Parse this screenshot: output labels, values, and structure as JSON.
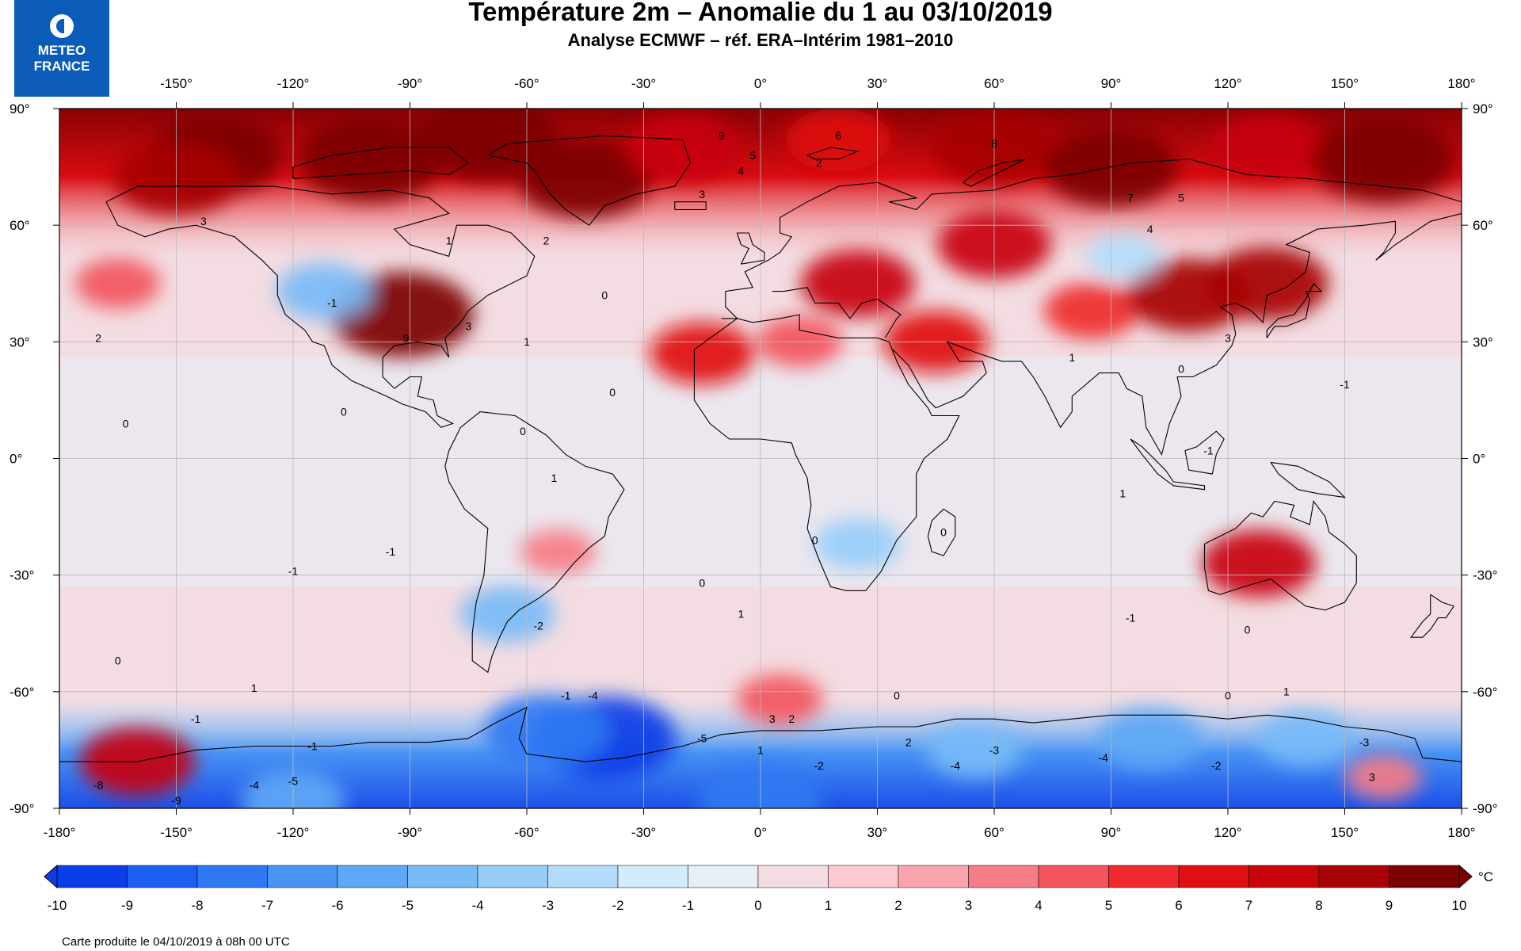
{
  "header": {
    "title": "Température 2m – Anomalie du 1 au 03/10/2019",
    "subtitle": "Analyse ECMWF – réf. ERA–Intérim 1981–2010"
  },
  "logo": {
    "line1": "METEO",
    "line2": "FRANCE",
    "icon": "meteo-france-logo-icon"
  },
  "map": {
    "projection": "equirectangular",
    "lon_range": [
      -180,
      180
    ],
    "lat_range": [
      -90,
      90
    ],
    "lon_ticks": [
      "-150°",
      "-120°",
      "-90°",
      "-60°",
      "-30°",
      "0°",
      "30°",
      "60°",
      "90°",
      "120°",
      "150°",
      "180°"
    ],
    "lon_ticks_bottom": [
      "-180°",
      "-150°",
      "-120°",
      "-90°",
      "-60°",
      "-30°",
      "0°",
      "30°",
      "60°",
      "90°",
      "120°",
      "150°",
      "180°"
    ],
    "lat_ticks": [
      "90°",
      "60°",
      "30°",
      "0°",
      "-30°",
      "-60°",
      "-90°"
    ],
    "grid": true,
    "background_color": "#f3dde2",
    "anomalies": [
      {
        "lon": -140,
        "lat": 78,
        "value": 9
      },
      {
        "lon": -150,
        "lat": 72,
        "value": 8
      },
      {
        "lon": -100,
        "lat": 77,
        "value": 10
      },
      {
        "lon": -70,
        "lat": 82,
        "value": 10
      },
      {
        "lon": -45,
        "lat": 72,
        "value": 9
      },
      {
        "lon": -20,
        "lat": 80,
        "value": 7
      },
      {
        "lon": 20,
        "lat": 82,
        "value": 6
      },
      {
        "lon": 60,
        "lat": 80,
        "value": 8
      },
      {
        "lon": 90,
        "lat": 75,
        "value": 9
      },
      {
        "lon": 130,
        "lat": 80,
        "value": 7
      },
      {
        "lon": 160,
        "lat": 77,
        "value": 10
      },
      {
        "lon": -165,
        "lat": 45,
        "value": 4
      },
      {
        "lon": -92,
        "lat": 37,
        "value": 10
      },
      {
        "lon": -112,
        "lat": 43,
        "value": -5
      },
      {
        "lon": -15,
        "lat": 27,
        "value": 6
      },
      {
        "lon": 10,
        "lat": 30,
        "value": 4
      },
      {
        "lon": 25,
        "lat": 45,
        "value": 7
      },
      {
        "lon": 45,
        "lat": 30,
        "value": 6
      },
      {
        "lon": 60,
        "lat": 55,
        "value": 7
      },
      {
        "lon": 85,
        "lat": 38,
        "value": 5
      },
      {
        "lon": 110,
        "lat": 42,
        "value": 8
      },
      {
        "lon": 130,
        "lat": 45,
        "value": 8
      },
      {
        "lon": 93,
        "lat": 52,
        "value": -3
      },
      {
        "lon": -52,
        "lat": -24,
        "value": 3
      },
      {
        "lon": -65,
        "lat": -40,
        "value": -5
      },
      {
        "lon": 25,
        "lat": -22,
        "value": -4
      },
      {
        "lon": 128,
        "lat": -27,
        "value": 7
      },
      {
        "lon": 5,
        "lat": -62,
        "value": 4
      },
      {
        "lon": -40,
        "lat": -72,
        "value": -10
      },
      {
        "lon": -55,
        "lat": -70,
        "value": -8
      },
      {
        "lon": 100,
        "lat": -72,
        "value": -6
      },
      {
        "lon": 140,
        "lat": -72,
        "value": -5
      },
      {
        "lon": 55,
        "lat": -75,
        "value": -5
      },
      {
        "lon": -160,
        "lat": -78,
        "value": 7
      },
      {
        "lon": 160,
        "lat": -82,
        "value": 3
      },
      {
        "lon": 0,
        "lat": -88,
        "value": -8
      },
      {
        "lon": -120,
        "lat": -88,
        "value": -6
      }
    ],
    "contour_labels": [
      {
        "lon": -170,
        "lat": 30,
        "text": "2"
      },
      {
        "lon": -143,
        "lat": 60,
        "text": "3"
      },
      {
        "lon": -163,
        "lat": 8,
        "text": "0"
      },
      {
        "lon": -107,
        "lat": 11,
        "text": "0"
      },
      {
        "lon": -110,
        "lat": 39,
        "text": "-1"
      },
      {
        "lon": -91,
        "lat": 30,
        "text": "9"
      },
      {
        "lon": -75,
        "lat": 33,
        "text": "3"
      },
      {
        "lon": -60,
        "lat": 29,
        "text": "1"
      },
      {
        "lon": -40,
        "lat": 41,
        "text": "0"
      },
      {
        "lon": -38,
        "lat": 16,
        "text": "0"
      },
      {
        "lon": -61,
        "lat": 6,
        "text": "0"
      },
      {
        "lon": -53,
        "lat": -6,
        "text": "1"
      },
      {
        "lon": -95,
        "lat": -25,
        "text": "-1"
      },
      {
        "lon": -120,
        "lat": -30,
        "text": "-1"
      },
      {
        "lon": -57,
        "lat": -44,
        "text": "-2"
      },
      {
        "lon": -15,
        "lat": -33,
        "text": "0"
      },
      {
        "lon": -5,
        "lat": -41,
        "text": "1"
      },
      {
        "lon": -145,
        "lat": -68,
        "text": "-1"
      },
      {
        "lon": -115,
        "lat": -75,
        "text": "-1"
      },
      {
        "lon": -130,
        "lat": -60,
        "text": "1"
      },
      {
        "lon": -165,
        "lat": -53,
        "text": "0"
      },
      {
        "lon": -170,
        "lat": -85,
        "text": "-8"
      },
      {
        "lon": -150,
        "lat": -89,
        "text": "-9"
      },
      {
        "lon": -130,
        "lat": -85,
        "text": "-4"
      },
      {
        "lon": -120,
        "lat": -84,
        "text": "-5"
      },
      {
        "lon": -50,
        "lat": -62,
        "text": "-1"
      },
      {
        "lon": -43,
        "lat": -62,
        "text": "-4"
      },
      {
        "lon": -15,
        "lat": -73,
        "text": "-5"
      },
      {
        "lon": 0,
        "lat": -76,
        "text": "1"
      },
      {
        "lon": 3,
        "lat": -68,
        "text": "3"
      },
      {
        "lon": 8,
        "lat": -68,
        "text": "2"
      },
      {
        "lon": 15,
        "lat": -80,
        "text": "-2"
      },
      {
        "lon": 35,
        "lat": -62,
        "text": "0"
      },
      {
        "lon": 38,
        "lat": -74,
        "text": "2"
      },
      {
        "lon": 50,
        "lat": -80,
        "text": "-4"
      },
      {
        "lon": 60,
        "lat": -76,
        "text": "-3"
      },
      {
        "lon": 88,
        "lat": -78,
        "text": "-4"
      },
      {
        "lon": 117,
        "lat": -80,
        "text": "-2"
      },
      {
        "lon": 120,
        "lat": -62,
        "text": "0"
      },
      {
        "lon": 135,
        "lat": -61,
        "text": "1"
      },
      {
        "lon": 155,
        "lat": -74,
        "text": "-3"
      },
      {
        "lon": 157,
        "lat": -83,
        "text": "3"
      },
      {
        "lon": 125,
        "lat": -45,
        "text": "0"
      },
      {
        "lon": 95,
        "lat": -42,
        "text": "-1"
      },
      {
        "lon": 93,
        "lat": -10,
        "text": "1"
      },
      {
        "lon": 80,
        "lat": 25,
        "text": "1"
      },
      {
        "lon": 47,
        "lat": -20,
        "text": "0"
      },
      {
        "lon": 14,
        "lat": -22,
        "text": "0"
      },
      {
        "lon": 20,
        "lat": 82,
        "text": "6"
      },
      {
        "lon": -10,
        "lat": 82,
        "text": "9"
      },
      {
        "lon": 15,
        "lat": 75,
        "text": "2"
      },
      {
        "lon": -5,
        "lat": 73,
        "text": "4"
      },
      {
        "lon": -2,
        "lat": 77,
        "text": "5"
      },
      {
        "lon": -15,
        "lat": 67,
        "text": "3"
      },
      {
        "lon": -55,
        "lat": 55,
        "text": "2"
      },
      {
        "lon": -80,
        "lat": 55,
        "text": "1"
      },
      {
        "lon": 60,
        "lat": 80,
        "text": "8"
      },
      {
        "lon": 95,
        "lat": 66,
        "text": "7"
      },
      {
        "lon": 108,
        "lat": 66,
        "text": "5"
      },
      {
        "lon": 100,
        "lat": 58,
        "text": "4"
      },
      {
        "lon": 115,
        "lat": 1,
        "text": "-1"
      },
      {
        "lon": 150,
        "lat": 18,
        "text": "-1"
      },
      {
        "lon": 108,
        "lat": 22,
        "text": "0"
      },
      {
        "lon": 120,
        "lat": 30,
        "text": "3"
      }
    ]
  },
  "colorbar": {
    "unit": "°C",
    "ticks": [
      "-10",
      "-9",
      "-8",
      "-7",
      "-6",
      "-5",
      "-4",
      "-3",
      "-2",
      "-1",
      "0",
      "1",
      "2",
      "3",
      "4",
      "5",
      "6",
      "7",
      "8",
      "9",
      "10"
    ],
    "colors": [
      "#0a3ee6",
      "#1c5ef0",
      "#2f79f2",
      "#4893f4",
      "#5fa8f5",
      "#78bbf7",
      "#96cdf9",
      "#b3dcfa",
      "#d3ecfb",
      "#e6eef6",
      "#f3dde2",
      "#fcc9cf",
      "#f9a4ac",
      "#f67c85",
      "#f2555d",
      "#ee2a2e",
      "#e00f12",
      "#c8060a",
      "#a70306",
      "#7c0000"
    ]
  },
  "footer": {
    "text": "Carte produite le 04/10/2019 à 08h 00 UTC"
  }
}
